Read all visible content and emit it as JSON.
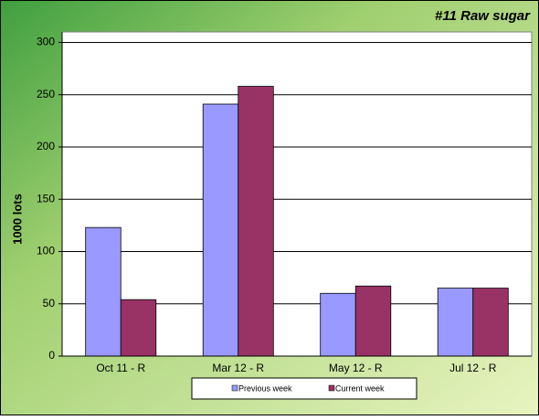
{
  "chart_data": {
    "type": "bar",
    "title": "#11 Raw sugar",
    "y_label": "1000 lots",
    "categories": [
      "Oct 11 - R",
      "Mar 12 - R",
      "May 12 - R",
      "Jul 12 - R"
    ],
    "series": [
      {
        "name": "Previous week",
        "color": "#9999ff",
        "values": [
          123,
          241,
          60,
          65
        ]
      },
      {
        "name": "Current week",
        "color": "#993366",
        "values": [
          54,
          258,
          67,
          65
        ]
      }
    ],
    "ylim": [
      0,
      310
    ],
    "yticks": [
      0,
      50,
      100,
      150,
      200,
      250,
      300
    ],
    "grid": true,
    "legend": "bottom"
  }
}
